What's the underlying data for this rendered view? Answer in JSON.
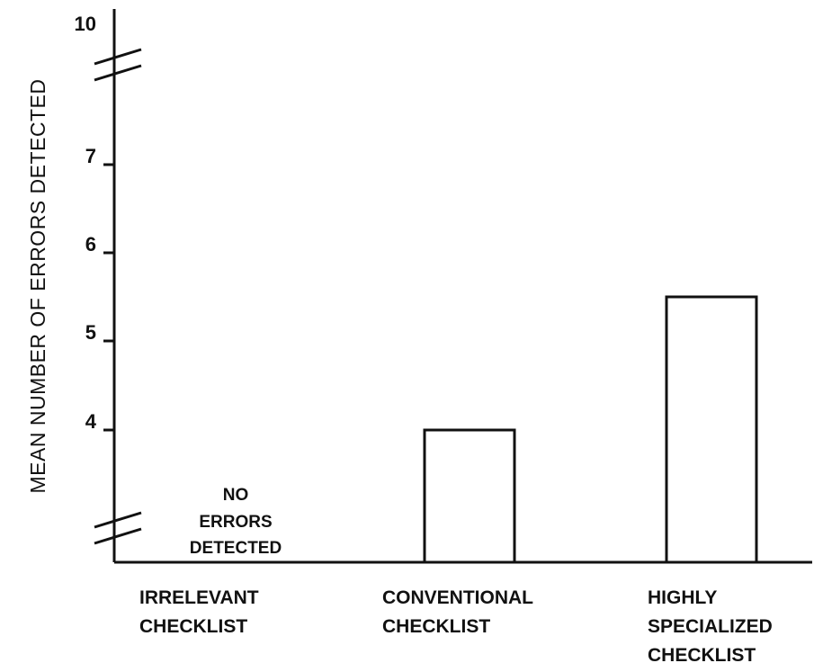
{
  "chart_data": {
    "type": "bar",
    "title": "",
    "xlabel": "",
    "ylabel": "MEAN NUMBER OF ERRORS DETECTED",
    "categories": [
      [
        "IRRELEVANT",
        "CHECKLIST"
      ],
      [
        "CONVENTIONAL",
        "CHECKLIST"
      ],
      [
        "HIGHLY",
        "SPECIALIZED",
        "CHECKLIST"
      ]
    ],
    "values": [
      0,
      4,
      5.5
    ],
    "y_ticks": [
      "4",
      "5",
      "6",
      "7",
      "10"
    ],
    "y_tick_values": [
      4,
      5,
      6,
      7,
      10
    ],
    "ylim": [
      3,
      10
    ],
    "axis_breaks": [
      "between 3 and 4",
      "between 7 and 10"
    ],
    "grid": false,
    "legend": "none",
    "annotation": [
      "NO",
      "ERRORS",
      "DETECTED"
    ],
    "bar_fill": "#ffffff",
    "stroke_color": "#111111"
  }
}
